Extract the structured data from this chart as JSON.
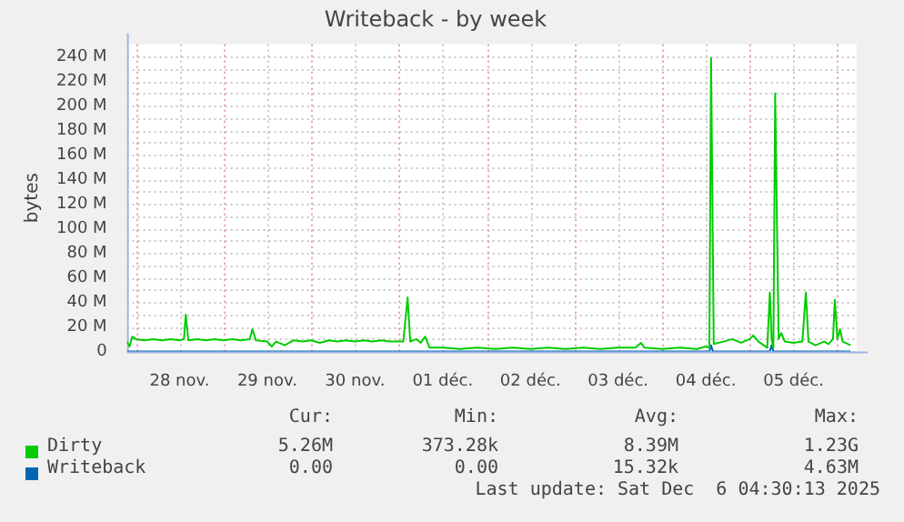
{
  "chart_data": {
    "type": "line",
    "title": "Writeback - by week",
    "ylabel": "bytes",
    "xlim": [
      "2025-11-27T21:36",
      "2025-12-06T05:17"
    ],
    "ylim": [
      0,
      250
    ],
    "xticks": [
      {
        "value": "2025-11-28T00:00",
        "label": null
      },
      {
        "value": "2025-11-28T12:00",
        "label": "28 nov."
      },
      {
        "value": "2025-11-29T00:00",
        "label": null
      },
      {
        "value": "2025-11-29T12:00",
        "label": "29 nov."
      },
      {
        "value": "2025-11-30T00:00",
        "label": null
      },
      {
        "value": "2025-11-30T12:00",
        "label": "30 nov."
      },
      {
        "value": "2025-12-01T00:00",
        "label": null
      },
      {
        "value": "2025-12-01T12:00",
        "label": "01 déc."
      },
      {
        "value": "2025-12-02T00:00",
        "label": null
      },
      {
        "value": "2025-12-02T12:00",
        "label": "02 déc."
      },
      {
        "value": "2025-12-03T00:00",
        "label": null
      },
      {
        "value": "2025-12-03T12:00",
        "label": "03 déc."
      },
      {
        "value": "2025-12-04T00:00",
        "label": null
      },
      {
        "value": "2025-12-04T12:00",
        "label": "04 déc."
      },
      {
        "value": "2025-12-05T00:00",
        "label": null
      },
      {
        "value": "2025-12-05T12:00",
        "label": "05 déc."
      },
      {
        "value": "2025-12-06T00:00",
        "label": null
      }
    ],
    "yticks": [
      {
        "value": 0,
        "label": "0"
      },
      {
        "value": 20,
        "label": "20 M"
      },
      {
        "value": 40,
        "label": "40 M"
      },
      {
        "value": 60,
        "label": "60 M"
      },
      {
        "value": 80,
        "label": "80 M"
      },
      {
        "value": 100,
        "label": "100 M"
      },
      {
        "value": 120,
        "label": "120 M"
      },
      {
        "value": 140,
        "label": "140 M"
      },
      {
        "value": 160,
        "label": "160 M"
      },
      {
        "value": 180,
        "label": "180 M"
      },
      {
        "value": 200,
        "label": "200 M"
      },
      {
        "value": 220,
        "label": "220 M"
      },
      {
        "value": 240,
        "label": "240 M"
      }
    ],
    "grid": true,
    "legend": "bottom",
    "marker": "none",
    "series": [
      {
        "name": "Dirty",
        "color": "#00cc00",
        "x": [
          "2025-11-27T21:36",
          "2025-11-27T22:19",
          "2025-11-27T23:02",
          "2025-11-28T00:00",
          "2025-11-28T02:24",
          "2025-11-28T04:48",
          "2025-11-28T07:12",
          "2025-11-28T09:36",
          "2025-11-28T12:00",
          "2025-11-28T13:12",
          "2025-11-28T13:41",
          "2025-11-28T14:24",
          "2025-11-28T16:48",
          "2025-11-28T19:12",
          "2025-11-28T21:36",
          "2025-11-29T00:00",
          "2025-11-29T02:24",
          "2025-11-29T04:48",
          "2025-11-29T07:12",
          "2025-11-29T07:55",
          "2025-11-29T08:53",
          "2025-11-29T12:00",
          "2025-11-29T13:12",
          "2025-11-29T14:24",
          "2025-11-29T16:48",
          "2025-11-29T19:12",
          "2025-11-29T21:36",
          "2025-11-30T00:00",
          "2025-11-30T02:24",
          "2025-11-30T04:48",
          "2025-11-30T07:12",
          "2025-11-30T09:36",
          "2025-11-30T12:00",
          "2025-11-30T14:24",
          "2025-11-30T16:48",
          "2025-11-30T19:12",
          "2025-11-30T21:36",
          "2025-12-01T01:12",
          "2025-12-01T02:24",
          "2025-12-01T03:07",
          "2025-12-01T04:48",
          "2025-12-01T06:00",
          "2025-12-01T07:12",
          "2025-12-01T08:24",
          "2025-12-01T12:00",
          "2025-12-01T16:48",
          "2025-12-01T21:36",
          "2025-12-02T02:24",
          "2025-12-02T07:12",
          "2025-12-02T12:00",
          "2025-12-02T16:48",
          "2025-12-02T21:36",
          "2025-12-03T02:24",
          "2025-12-03T07:12",
          "2025-12-03T12:00",
          "2025-12-03T16:48",
          "2025-12-03T18:14",
          "2025-12-03T19:12",
          "2025-12-04T00:00",
          "2025-12-04T04:48",
          "2025-12-04T09:36",
          "2025-12-04T12:00",
          "2025-12-04T12:58",
          "2025-12-04T13:26",
          "2025-12-04T14:10",
          "2025-12-04T16:48",
          "2025-12-04T19:12",
          "2025-12-04T21:36",
          "2025-12-05T00:00",
          "2025-12-05T00:58",
          "2025-12-05T02:24",
          "2025-12-05T04:48",
          "2025-12-05T05:31",
          "2025-12-05T06:00",
          "2025-12-05T06:29",
          "2025-12-05T06:58",
          "2025-12-05T07:55",
          "2025-12-05T08:38",
          "2025-12-05T09:36",
          "2025-12-05T12:00",
          "2025-12-05T14:24",
          "2025-12-05T15:22",
          "2025-12-05T16:05",
          "2025-12-05T18:00",
          "2025-12-05T20:24",
          "2025-12-05T21:36",
          "2025-12-05T22:48",
          "2025-12-05T23:17",
          "2025-12-06T00:00",
          "2025-12-06T00:43",
          "2025-12-06T01:26",
          "2025-12-06T03:36"
        ],
        "values": [
          8,
          4,
          12,
          10,
          9,
          10,
          9,
          10,
          9,
          10,
          30,
          9,
          10,
          9,
          10,
          9,
          10,
          9,
          10,
          18,
          9,
          8,
          4,
          8,
          5,
          9,
          8,
          9,
          7,
          9,
          8,
          9,
          8,
          9,
          8,
          9,
          8,
          8,
          44,
          8,
          10,
          7,
          12,
          3,
          3,
          2,
          3,
          2,
          3,
          2,
          3,
          2,
          3,
          2,
          3,
          3,
          7,
          3,
          2,
          3,
          2,
          4,
          3,
          239,
          6,
          8,
          10,
          7,
          10,
          13,
          8,
          3,
          48,
          10,
          3,
          210,
          10,
          15,
          8,
          7,
          8,
          48,
          8,
          5,
          8,
          6,
          10,
          42,
          10,
          18,
          8,
          5
        ]
      },
      {
        "name": "Writeback",
        "color": "#0066b3",
        "x": [
          "2025-11-27T21:36",
          "2025-12-04T12:58",
          "2025-12-04T13:26",
          "2025-12-04T13:55",
          "2025-12-05T05:31",
          "2025-12-05T06:00",
          "2025-12-05T06:29",
          "2025-12-06T03:36"
        ],
        "values": [
          0,
          0,
          5,
          0,
          0,
          5,
          0,
          0
        ]
      }
    ],
    "annotations": [
      "Cur:",
      "Min:",
      "Avg:",
      "Max:",
      "5.26M",
      "373.28k",
      "8.39M",
      "1.23G",
      "0.00",
      "0.00",
      "15.32k",
      "4.63M",
      "Last update: Sat Dec  6 04:30:13 2025"
    ]
  }
}
